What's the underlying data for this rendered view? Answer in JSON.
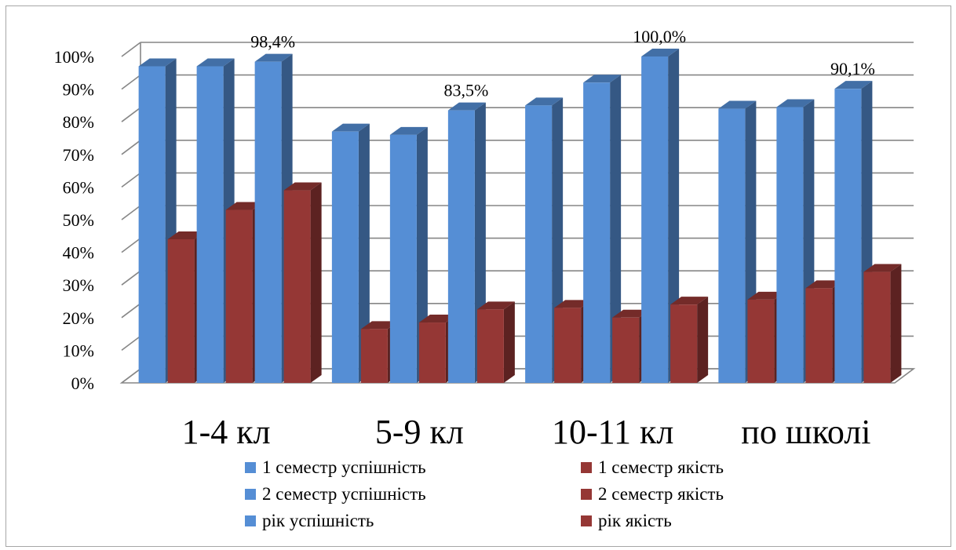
{
  "chart_data": {
    "type": "bar",
    "categories": [
      "1-4 кл",
      "5-9 кл",
      "10-11 кл",
      "по школі"
    ],
    "series": [
      {
        "name": "1 семестр успішність",
        "values": [
          0.97,
          0.77,
          0.85,
          0.84
        ],
        "color": "#558ED5"
      },
      {
        "name": "1 семестр якість",
        "values": [
          0.44,
          0.165,
          0.23,
          0.255
        ],
        "color": "#953735"
      },
      {
        "name": "2 семестр успішність",
        "values": [
          0.97,
          0.76,
          0.92,
          0.845
        ],
        "color": "#558ED5"
      },
      {
        "name": "2 семестр якість",
        "values": [
          0.53,
          0.185,
          0.2,
          0.29
        ],
        "color": "#953735"
      },
      {
        "name": "рік успішність",
        "values": [
          0.984,
          0.835,
          1.0,
          0.901
        ],
        "color": "#558ED5"
      },
      {
        "name": "рік якість",
        "values": [
          0.59,
          0.225,
          0.24,
          0.34
        ],
        "color": "#953735"
      }
    ],
    "data_labels": [
      {
        "series": "рік успішність",
        "category": "1-4 кл",
        "text": "98,4%"
      },
      {
        "series": "рік успішність",
        "category": "5-9 кл",
        "text": "83,5%"
      },
      {
        "series": "рік успішність",
        "category": "10-11 кл",
        "text": "100,0%"
      },
      {
        "series": "рік успішність",
        "category": "по школі",
        "text": "90,1%"
      }
    ],
    "y_ticks": [
      "0%",
      "10%",
      "20%",
      "30%",
      "40%",
      "50%",
      "60%",
      "70%",
      "80%",
      "90%",
      "100%"
    ],
    "ylim": [
      0,
      1
    ],
    "grid": true,
    "legend_position": "bottom",
    "style": "3d-clustered-column"
  }
}
